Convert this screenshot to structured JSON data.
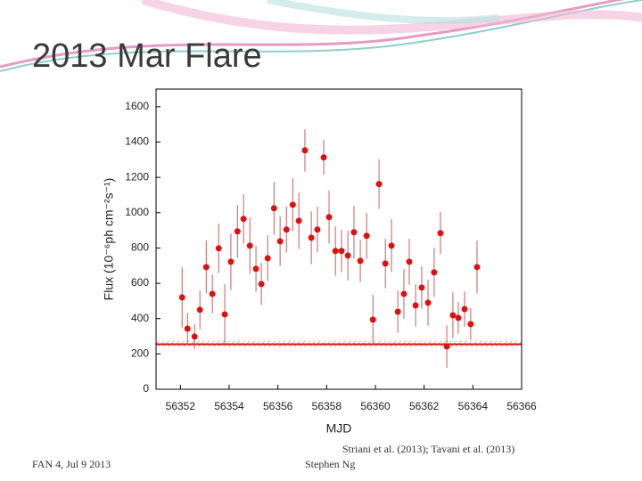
{
  "slide": {
    "title": "2013 Mar Flare",
    "footer_left": "FAN 4, Jul 9 2013",
    "citation": "Striani et al. (2013); Tavani et al. (2013)",
    "author": "Stephen Ng"
  },
  "chart_data": {
    "type": "scatter",
    "x_label": "MJD",
    "y_label": "Flux (10⁻⁶ph cm⁻²s⁻¹)",
    "color": "#e01010",
    "x": [
      56352.07,
      56352.29,
      56352.58,
      56352.8,
      56353.06,
      56353.31,
      56353.57,
      56353.82,
      56354.07,
      56354.34,
      56354.59,
      56354.85,
      56355.1,
      56355.32,
      56355.58,
      56355.84,
      56356.09,
      56356.35,
      56356.61,
      56356.86,
      56357.11,
      56357.37,
      56357.62,
      56357.88,
      56358.1,
      56358.36,
      56358.61,
      56358.87,
      56359.12,
      56359.38,
      56359.64,
      56359.9,
      56360.15,
      56360.41,
      56360.66,
      56360.92,
      56361.17,
      56361.39,
      56361.65,
      56361.9,
      56362.16,
      56362.41,
      56362.67,
      56362.93,
      56363.18,
      56363.4,
      56363.66,
      56363.91,
      56364.17
    ],
    "values": [
      520,
      343,
      298,
      450,
      692,
      540,
      798,
      424,
      722,
      894,
      965,
      813,
      682,
      596,
      742,
      1025,
      838,
      904,
      1045,
      954,
      1353,
      858,
      904,
      1313,
      975,
      783,
      783,
      757,
      889,
      727,
      869,
      394,
      1162,
      712,
      813,
      439,
      540,
      722,
      475,
      576,
      490,
      662,
      884,
      242,
      419,
      404,
      454,
      369,
      692
    ],
    "errors": [
      170,
      90,
      70,
      110,
      150,
      110,
      140,
      170,
      160,
      150,
      140,
      160,
      130,
      120,
      130,
      150,
      140,
      130,
      150,
      160,
      120,
      150,
      130,
      100,
      150,
      140,
      120,
      140,
      150,
      120,
      130,
      140,
      140,
      140,
      150,
      120,
      140,
      130,
      120,
      120,
      130,
      140,
      120,
      120,
      130,
      90,
      100,
      90,
      150
    ],
    "xlim": [
      56351,
      56366
    ],
    "xticks": [
      56352,
      56354,
      56356,
      56358,
      56360,
      56362,
      56364,
      56366
    ],
    "ylim": [
      0,
      1700
    ],
    "yticks": [
      0,
      200,
      400,
      600,
      800,
      1000,
      1200,
      1400,
      1600
    ],
    "band": {
      "center": 255,
      "low": 240,
      "high": 275
    }
  }
}
